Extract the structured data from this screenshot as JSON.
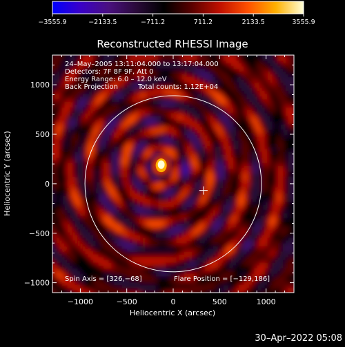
{
  "chart_data": {
    "type": "heatmap",
    "title": "Reconstructed RHESSI Image",
    "xlabel": "Heliocentric X (arcsec)",
    "ylabel": "Heliocentric Y (arcsec)",
    "xlim": [
      -1300,
      1300
    ],
    "ylim": [
      -1100,
      1300
    ],
    "x_ticks": [
      -1000,
      -500,
      0,
      500,
      1000
    ],
    "x_tick_labels": [
      "−1000",
      "−500",
      "0",
      "500",
      "1000"
    ],
    "y_ticks": [
      -1000,
      -500,
      0,
      500,
      1000
    ],
    "y_tick_labels": [
      "−1000",
      "−500",
      "0",
      "500",
      "1000"
    ],
    "colorbar": {
      "min": -3555.9,
      "max": 3555.9,
      "tick_labels": [
        "−3555.9",
        "−2133.5",
        "−711.2",
        "711.2",
        "2133.5",
        "3555.9"
      ],
      "colors": [
        "#0000ff",
        "#3a00c8",
        "#4a1080",
        "#2a0a3a",
        "#000000",
        "#5a0000",
        "#c01000",
        "#ff5000",
        "#ffb000",
        "#ffffd8"
      ]
    },
    "annotations": {
      "date": "24–May–2005 13:11:04.000 to 13:17:04.000",
      "detectors": "Detectors: 7F 8F 9F, Att 0",
      "energy": "Energy Range: 6.0 – 12.0 keV",
      "method": "Back Projection",
      "counts": "Total counts: 1.12E+04",
      "spin_axis": "Spin Axis = [326,−68]",
      "flare_position": "Flare Position = [−129,186]"
    },
    "solar_limb_radius": 950,
    "spin_axis": [
      326,
      -68
    ],
    "flare_position": [
      -129,
      186
    ],
    "peak_value": 3555.9
  },
  "footer": {
    "timestamp": "30–Apr–2022 05:08"
  }
}
